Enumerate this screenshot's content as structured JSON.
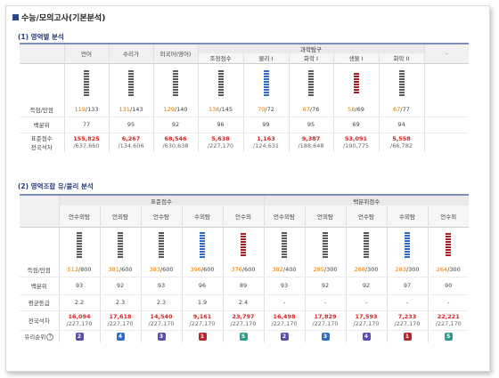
{
  "page_title": "수능/모의고사(기본분석)",
  "section1": {
    "title": "(1) 영역별 분석",
    "group_header": "과학탐구",
    "subjects": [
      "언어",
      "수리가",
      "외국어(영어)",
      "조정점수",
      "물리 I",
      "화학 I",
      "생물 I",
      "화학 II",
      "-"
    ],
    "bar_levels": [
      {
        "filled": 10,
        "color": "grey"
      },
      {
        "filled": 10,
        "color": "grey"
      },
      {
        "filled": 10,
        "color": "grey"
      },
      {
        "filled": 10,
        "color": "grey"
      },
      {
        "filled": 10,
        "color": "blue"
      },
      {
        "filled": 10,
        "color": "grey"
      },
      {
        "filled": 8,
        "color": "red"
      },
      {
        "filled": 10,
        "color": "grey"
      }
    ],
    "rows": {
      "raw_label": "득점/만점",
      "raw_scores": [
        "119",
        "131",
        "129",
        "136",
        "70",
        "67",
        "58",
        "67"
      ],
      "raw_max": [
        "/133",
        "/143",
        "/140",
        "/145",
        "/72",
        "/76",
        "/69",
        "/77"
      ],
      "pct_label": "백분위",
      "percentiles": [
        "77",
        "95",
        "92",
        "96",
        "99",
        "95",
        "69",
        "94"
      ],
      "std_label": "표준점수",
      "rank_label": "전국석차",
      "ranks": [
        "155,825",
        "6,267",
        "68,546",
        "5,638",
        "1,163",
        "9,387",
        "53,091",
        "5,558"
      ],
      "totals": [
        "/637,660",
        "/134,606",
        "/630,638",
        "/227,170",
        "/124,631",
        "/188,648",
        "/190,775",
        "/66,782"
      ]
    }
  },
  "section2": {
    "title": "(2) 영역조합 유/불리 분석",
    "group_std": "표준점수",
    "group_pct": "백분위점수",
    "combos": [
      "언수외탐",
      "언외탐",
      "언수탐",
      "수외탐",
      "언수외",
      "언수외탐",
      "언외탐",
      "언수탐",
      "수외탐",
      "언수외"
    ],
    "bar_levels": [
      {
        "filled": 10,
        "color": "grey"
      },
      {
        "filled": 10,
        "color": "grey"
      },
      {
        "filled": 10,
        "color": "grey"
      },
      {
        "filled": 10,
        "color": "blue"
      },
      {
        "filled": 9,
        "color": "red"
      },
      {
        "filled": 10,
        "color": "grey"
      },
      {
        "filled": 10,
        "color": "grey"
      },
      {
        "filled": 10,
        "color": "grey"
      },
      {
        "filled": 10,
        "color": "blue"
      },
      {
        "filled": 9,
        "color": "red"
      }
    ],
    "rows": {
      "raw_label": "득점/만점",
      "raw_scores": [
        "512",
        "381",
        "383",
        "396",
        "376",
        "382",
        "285",
        "288",
        "283",
        "264"
      ],
      "raw_max": [
        "/800",
        "/600",
        "/600",
        "/600",
        "/600",
        "/400",
        "/300",
        "/300",
        "/300",
        "/300"
      ],
      "pct_label": "백분위",
      "percentiles": [
        "93",
        "92",
        "93",
        "96",
        "89",
        "93",
        "92",
        "92",
        "97",
        "90"
      ],
      "grade_label": "평균등급",
      "grades": [
        "2.2",
        "2.3",
        "2.3",
        "1.9",
        "2.4",
        "-",
        "-",
        "-",
        "-",
        "-"
      ],
      "rank_label": "전국석차",
      "ranks": [
        "16,094",
        "17,618",
        "14,540",
        "9,161",
        "23,797",
        "16,498",
        "17,829",
        "17,593",
        "7,233",
        "22,221"
      ],
      "totals": [
        "/227,170",
        "/227,170",
        "/227,170",
        "/227,170",
        "/227,170",
        "/227,170",
        "/227,170",
        "/227,170",
        "/227,170",
        "/227,170"
      ],
      "pref_label": "유리순위",
      "pref_badges": [
        "2",
        "4",
        "3",
        "1",
        "5",
        "2",
        "3",
        "4",
        "1",
        "5"
      ],
      "pref_colors": [
        "#5a4fb0",
        "#2f6ec4",
        "#5a4fb0",
        "#b8252d",
        "#2f9c8e",
        "#5a4fb0",
        "#2f6ec4",
        "#5a4fb0",
        "#b8252d",
        "#2f9c8e"
      ]
    }
  }
}
